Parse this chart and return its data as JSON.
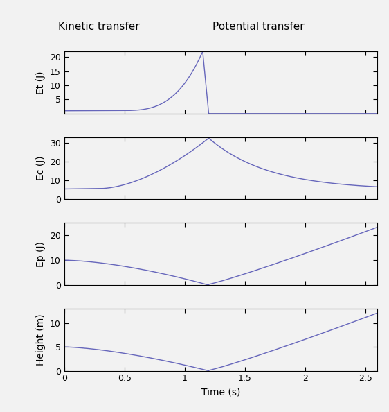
{
  "title_left": "Kinetic transfer",
  "title_right": "Potential transfer",
  "xlabel": "Time (s)",
  "xlim": [
    0,
    2.6
  ],
  "xticks": [
    0,
    0.5,
    1.0,
    1.5,
    2.0,
    2.5
  ],
  "xtick_labels": [
    "0",
    "0.5",
    "1",
    "1.5",
    "2",
    "2.5"
  ],
  "line_color": "#6666bb",
  "background_color": "#f2f2f2",
  "subplots": [
    {
      "ylabel": "Et (J)",
      "ylim": [
        0,
        22
      ],
      "yticks": [
        5,
        10,
        15,
        20
      ],
      "ytick_labels": [
        "5",
        "10",
        "15",
        "20"
      ]
    },
    {
      "ylabel": "Ec (J)",
      "ylim": [
        0,
        33
      ],
      "yticks": [
        0,
        10,
        20,
        30
      ],
      "ytick_labels": [
        "0",
        "10",
        "20",
        "30"
      ]
    },
    {
      "ylabel": "Ep (J)",
      "ylim": [
        0,
        25
      ],
      "yticks": [
        0,
        10,
        20
      ],
      "ytick_labels": [
        "0",
        "10",
        "20"
      ]
    },
    {
      "ylabel": "Height (m)",
      "ylim": [
        0,
        13
      ],
      "yticks": [
        0,
        5,
        10
      ],
      "ytick_labels": [
        "0",
        "5",
        "10"
      ]
    }
  ]
}
